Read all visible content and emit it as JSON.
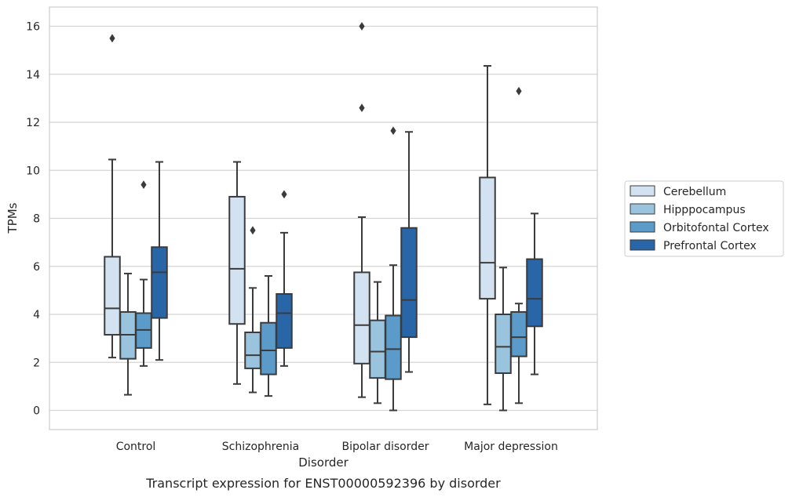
{
  "chart_data": {
    "type": "box",
    "xlabel": "Disorder",
    "ylabel": "TPMs",
    "caption": "Transcript expression for ENST00000592396 by disorder",
    "ylim": [
      -0.8,
      16.8
    ],
    "yticks": [
      0,
      2,
      4,
      6,
      8,
      10,
      12,
      14,
      16
    ],
    "grid": "horizontal",
    "legend_position": "right",
    "categories": [
      "Control",
      "Schizophrenia",
      "Bipolar disorder",
      "Major depression"
    ],
    "series": [
      {
        "name": "Cerebellum",
        "color": "#d3e2f1",
        "boxes": [
          {
            "whisker_low": 2.2,
            "q1": 3.15,
            "median": 4.25,
            "q3": 6.4,
            "whisker_high": 10.45,
            "outliers": [
              15.5
            ]
          },
          {
            "whisker_low": 1.1,
            "q1": 3.6,
            "median": 5.9,
            "q3": 8.9,
            "whisker_high": 10.35,
            "outliers": []
          },
          {
            "whisker_low": 0.55,
            "q1": 1.95,
            "median": 3.55,
            "q3": 5.75,
            "whisker_high": 8.05,
            "outliers": [
              12.6,
              16.0
            ]
          },
          {
            "whisker_low": 0.25,
            "q1": 4.65,
            "median": 6.15,
            "q3": 9.7,
            "whisker_high": 14.35,
            "outliers": []
          }
        ]
      },
      {
        "name": "Hipppocampus",
        "color": "#9ac3de",
        "boxes": [
          {
            "whisker_low": 0.65,
            "q1": 2.15,
            "median": 3.15,
            "q3": 4.1,
            "whisker_high": 5.7,
            "outliers": []
          },
          {
            "whisker_low": 0.75,
            "q1": 1.75,
            "median": 2.3,
            "q3": 3.25,
            "whisker_high": 5.1,
            "outliers": [
              7.5
            ]
          },
          {
            "whisker_low": 0.3,
            "q1": 1.35,
            "median": 2.45,
            "q3": 3.75,
            "whisker_high": 5.35,
            "outliers": []
          },
          {
            "whisker_low": 0.0,
            "q1": 1.55,
            "median": 2.65,
            "q3": 4.0,
            "whisker_high": 5.95,
            "outliers": []
          }
        ]
      },
      {
        "name": "Orbitofontal Cortex",
        "color": "#5a9bc9",
        "boxes": [
          {
            "whisker_low": 1.85,
            "q1": 2.6,
            "median": 3.35,
            "q3": 4.05,
            "whisker_high": 5.45,
            "outliers": [
              9.4
            ]
          },
          {
            "whisker_low": 0.6,
            "q1": 1.5,
            "median": 2.5,
            "q3": 3.65,
            "whisker_high": 5.6,
            "outliers": []
          },
          {
            "whisker_low": 0.0,
            "q1": 1.3,
            "median": 2.55,
            "q3": 3.95,
            "whisker_high": 6.05,
            "outliers": [
              11.65
            ]
          },
          {
            "whisker_low": 0.3,
            "q1": 2.25,
            "median": 3.05,
            "q3": 4.1,
            "whisker_high": 4.45,
            "outliers": [
              13.3
            ]
          }
        ]
      },
      {
        "name": "Prefrontal Cortex",
        "color": "#2966a8",
        "boxes": [
          {
            "whisker_low": 2.1,
            "q1": 3.85,
            "median": 5.75,
            "q3": 6.8,
            "whisker_high": 10.35,
            "outliers": []
          },
          {
            "whisker_low": 1.85,
            "q1": 2.6,
            "median": 4.05,
            "q3": 4.85,
            "whisker_high": 7.4,
            "outliers": [
              9.0
            ]
          },
          {
            "whisker_low": 1.6,
            "q1": 3.05,
            "median": 4.6,
            "q3": 7.6,
            "whisker_high": 11.6,
            "outliers": []
          },
          {
            "whisker_low": 1.5,
            "q1": 3.5,
            "median": 4.65,
            "q3": 6.3,
            "whisker_high": 8.2,
            "outliers": []
          }
        ]
      }
    ]
  }
}
